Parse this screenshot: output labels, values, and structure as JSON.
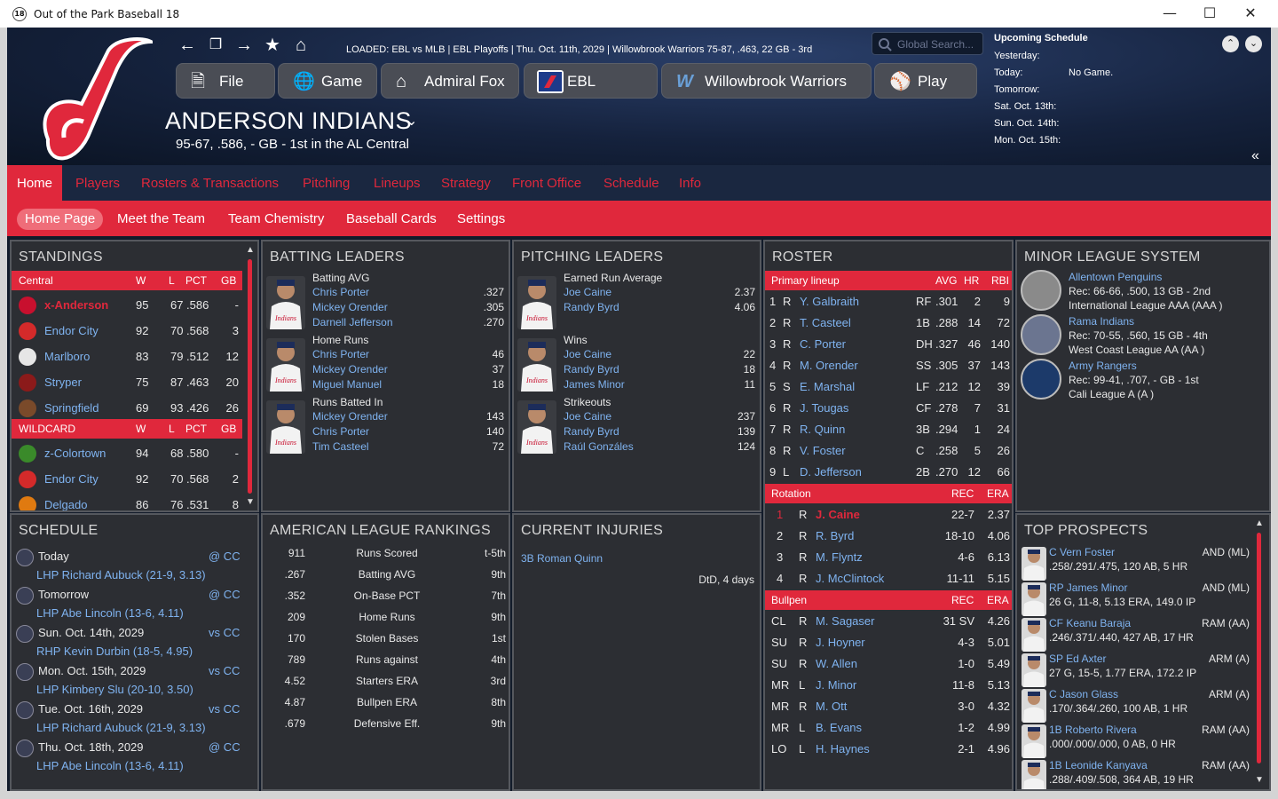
{
  "window": {
    "title": "Out of the Park Baseball 18",
    "app_icon": "18"
  },
  "header": {
    "loaded": "LOADED: EBL vs MLB  |  EBL Playoffs  |  Thu. Oct. 11th, 2029  |  Willowbrook Warriors  75-87, .463, 22 GB - 3rd",
    "search_placeholder": "Global Search...",
    "team_name": "ANDERSON INDIANS",
    "team_record": "95-67, .586, - GB - 1st in the AL Central",
    "menu": [
      "File",
      "Game",
      "Admiral Fox",
      "EBL",
      "Willowbrook Warriors",
      "Play"
    ],
    "logo_color": "#e0283c"
  },
  "upcoming": {
    "title": "Upcoming Schedule",
    "rows": [
      {
        "label": "Yesterday:",
        "value": ""
      },
      {
        "label": "Today:",
        "value": "No Game."
      },
      {
        "label": "Tomorrow:",
        "value": ""
      },
      {
        "label": "Sat. Oct. 13th:",
        "value": ""
      },
      {
        "label": "Sun. Oct. 14th:",
        "value": ""
      },
      {
        "label": "Mon. Oct. 15th:",
        "value": ""
      }
    ]
  },
  "nav": {
    "main": [
      "Home",
      "Players",
      "Rosters & Transactions",
      "Pitching",
      "Lineups",
      "Strategy",
      "Front Office",
      "Schedule",
      "Info"
    ],
    "sub": [
      "Home Page",
      "Meet the Team",
      "Team Chemistry",
      "Baseball Cards",
      "Settings"
    ]
  },
  "standings": {
    "title": "STANDINGS",
    "div_header": [
      "Central",
      "W",
      "L",
      "PCT",
      "GB"
    ],
    "division": [
      {
        "team": "x-Anderson",
        "w": "95",
        "l": "67",
        "pct": ".586",
        "gb": "-",
        "icon": "#c8102e"
      },
      {
        "team": "Endor City",
        "w": "92",
        "l": "70",
        "pct": ".568",
        "gb": "3",
        "icon": "#d42a2a"
      },
      {
        "team": "Marlboro",
        "w": "83",
        "l": "79",
        "pct": ".512",
        "gb": "12",
        "icon": "#e6e6e6"
      },
      {
        "team": "Stryper",
        "w": "75",
        "l": "87",
        "pct": ".463",
        "gb": "20",
        "icon": "#8b1a1a"
      },
      {
        "team": "Springfield",
        "w": "69",
        "l": "93",
        "pct": ".426",
        "gb": "26",
        "icon": "#7a4a2a"
      }
    ],
    "wc_header": [
      "WILDCARD",
      "W",
      "L",
      "PCT",
      "GB"
    ],
    "wildcard": [
      {
        "team": "z-Colortown",
        "w": "94",
        "l": "68",
        "pct": ".580",
        "gb": "-",
        "icon": "#3a8a2a"
      },
      {
        "team": "Endor City",
        "w": "92",
        "l": "70",
        "pct": ".568",
        "gb": "2",
        "icon": "#d42a2a"
      },
      {
        "team": "Delgado",
        "w": "86",
        "l": "76",
        "pct": ".531",
        "gb": "8",
        "icon": "#e07a10"
      }
    ]
  },
  "batting_leaders": {
    "title": "BATTING LEADERS",
    "groups": [
      {
        "stat": "Batting AVG",
        "rows": [
          {
            "name": "Chris Porter",
            "val": ".327"
          },
          {
            "name": "Mickey Orender",
            "val": ".305"
          },
          {
            "name": "Darnell Jefferson",
            "val": ".270"
          }
        ]
      },
      {
        "stat": "Home Runs",
        "rows": [
          {
            "name": "Chris Porter",
            "val": "46"
          },
          {
            "name": "Mickey Orender",
            "val": "37"
          },
          {
            "name": "Miguel Manuel",
            "val": "18"
          }
        ]
      },
      {
        "stat": "Runs Batted In",
        "rows": [
          {
            "name": "Mickey Orender",
            "val": "143"
          },
          {
            "name": "Chris Porter",
            "val": "140"
          },
          {
            "name": "Tim Casteel",
            "val": "72"
          }
        ]
      }
    ]
  },
  "pitching_leaders": {
    "title": "PITCHING LEADERS",
    "groups": [
      {
        "stat": "Earned Run Average",
        "rows": [
          {
            "name": "Joe Caine",
            "val": "2.37"
          },
          {
            "name": "Randy Byrd",
            "val": "4.06"
          }
        ]
      },
      {
        "stat": "Wins",
        "rows": [
          {
            "name": "Joe Caine",
            "val": "22"
          },
          {
            "name": "Randy Byrd",
            "val": "18"
          },
          {
            "name": "James Minor",
            "val": "11"
          }
        ]
      },
      {
        "stat": "Strikeouts",
        "rows": [
          {
            "name": "Joe Caine",
            "val": "237"
          },
          {
            "name": "Randy Byrd",
            "val": "139"
          },
          {
            "name": "Raúl Gonzáles",
            "val": "124"
          }
        ]
      }
    ]
  },
  "roster": {
    "title": "ROSTER",
    "lineup_header": [
      "Primary lineup",
      "AVG",
      "HR",
      "RBI"
    ],
    "lineup": [
      {
        "n": "1",
        "h": "R",
        "name": "Y. Galbraith",
        "pos": "RF",
        "avg": ".301",
        "hr": "2",
        "rbi": "9"
      },
      {
        "n": "2",
        "h": "R",
        "name": "T. Casteel",
        "pos": "1B",
        "avg": ".288",
        "hr": "14",
        "rbi": "72"
      },
      {
        "n": "3",
        "h": "R",
        "name": "C. Porter",
        "pos": "DH",
        "avg": ".327",
        "hr": "46",
        "rbi": "140"
      },
      {
        "n": "4",
        "h": "R",
        "name": "M. Orender",
        "pos": "SS",
        "avg": ".305",
        "hr": "37",
        "rbi": "143"
      },
      {
        "n": "5",
        "h": "S",
        "name": "E. Marshal",
        "pos": "LF",
        "avg": ".212",
        "hr": "12",
        "rbi": "39"
      },
      {
        "n": "6",
        "h": "R",
        "name": "J. Tougas",
        "pos": "CF",
        "avg": ".278",
        "hr": "7",
        "rbi": "31"
      },
      {
        "n": "7",
        "h": "R",
        "name": "R. Quinn",
        "pos": "3B",
        "avg": ".294",
        "hr": "1",
        "rbi": "24"
      },
      {
        "n": "8",
        "h": "R",
        "name": "V. Foster",
        "pos": "C",
        "avg": ".258",
        "hr": "5",
        "rbi": "26"
      },
      {
        "n": "9",
        "h": "L",
        "name": "D. Jefferson",
        "pos": "2B",
        "avg": ".270",
        "hr": "12",
        "rbi": "66"
      }
    ],
    "rotation_header": [
      "Rotation",
      "REC",
      "ERA"
    ],
    "rotation": [
      {
        "n": "1",
        "h": "R",
        "name": "J. Caine",
        "rec": "22-7",
        "era": "2.37"
      },
      {
        "n": "2",
        "h": "R",
        "name": "R. Byrd",
        "rec": "18-10",
        "era": "4.06"
      },
      {
        "n": "3",
        "h": "R",
        "name": "M. Flyntz",
        "rec": "4-6",
        "era": "6.13"
      },
      {
        "n": "4",
        "h": "R",
        "name": "J. McClintock",
        "rec": "11-11",
        "era": "5.15"
      }
    ],
    "bullpen_header": [
      "Bullpen",
      "REC",
      "ERA"
    ],
    "bullpen": [
      {
        "role": "CL",
        "h": "R",
        "name": "M. Sagaser",
        "rec": "31 SV",
        "era": "4.26"
      },
      {
        "role": "SU",
        "h": "R",
        "name": "J. Hoyner",
        "rec": "4-3",
        "era": "5.01"
      },
      {
        "role": "SU",
        "h": "R",
        "name": "W. Allen",
        "rec": "1-0",
        "era": "5.49"
      },
      {
        "role": "MR",
        "h": "L",
        "name": "J. Minor",
        "rec": "11-8",
        "era": "5.13"
      },
      {
        "role": "MR",
        "h": "R",
        "name": "M. Ott",
        "rec": "3-0",
        "era": "4.32"
      },
      {
        "role": "MR",
        "h": "L",
        "name": "B. Evans",
        "rec": "1-2",
        "era": "4.99"
      },
      {
        "role": "LO",
        "h": "L",
        "name": "H. Haynes",
        "rec": "2-1",
        "era": "4.96"
      }
    ]
  },
  "minors": {
    "title": "MINOR LEAGUE SYSTEM",
    "teams": [
      {
        "name": "Allentown Penguins",
        "l1": "Rec: 66-66, .500, 13 GB - 2nd",
        "l2": "International League AAA (AAA )"
      },
      {
        "name": "Rama Indians",
        "l1": "Rec: 70-55, .560, 15 GB - 4th",
        "l2": "West Coast League AA (AA )"
      },
      {
        "name": "Army Rangers",
        "l1": "Rec: 99-41, .707, - GB - 1st",
        "l2": "Cali League A (A )"
      }
    ]
  },
  "schedule": {
    "title": "SCHEDULE",
    "games": [
      {
        "date": "Today",
        "opp": "@ CC",
        "pitcher": "LHP Richard Aubuck (21-9, 3.13)"
      },
      {
        "date": "Tomorrow",
        "opp": "@ CC",
        "pitcher": "LHP Abe Lincoln (13-6, 4.11)"
      },
      {
        "date": "Sun. Oct. 14th, 2029",
        "opp": "vs CC",
        "pitcher": "RHP Kevin Durbin (18-5, 4.95)"
      },
      {
        "date": "Mon. Oct. 15th, 2029",
        "opp": "vs CC",
        "pitcher": "LHP Kimbery Slu (20-10, 3.50)"
      },
      {
        "date": "Tue. Oct. 16th, 2029",
        "opp": "vs CC",
        "pitcher": "LHP Richard Aubuck (21-9, 3.13)"
      },
      {
        "date": "Thu. Oct. 18th, 2029",
        "opp": "@ CC",
        "pitcher": "LHP Abe Lincoln (13-6, 4.11)"
      }
    ]
  },
  "rankings": {
    "title": "AMERICAN LEAGUE RANKINGS",
    "rows": [
      {
        "val": "911",
        "stat": "Runs Scored",
        "rank": "t-5th"
      },
      {
        "val": ".267",
        "stat": "Batting AVG",
        "rank": "9th"
      },
      {
        "val": ".352",
        "stat": "On-Base PCT",
        "rank": "7th"
      },
      {
        "val": "209",
        "stat": "Home Runs",
        "rank": "9th"
      },
      {
        "val": "170",
        "stat": "Stolen Bases",
        "rank": "1st"
      },
      {
        "val": "789",
        "stat": "Runs against",
        "rank": "4th"
      },
      {
        "val": "4.52",
        "stat": "Starters ERA",
        "rank": "3rd"
      },
      {
        "val": "4.87",
        "stat": "Bullpen ERA",
        "rank": "8th"
      },
      {
        "val": ".679",
        "stat": "Defensive Eff.",
        "rank": "9th"
      }
    ]
  },
  "injuries": {
    "title": "CURRENT INJURIES",
    "rows": [
      {
        "player": "3B Roman Quinn",
        "status": "DtD, 4 days"
      }
    ]
  },
  "prospects": {
    "title": "TOP PROSPECTS",
    "rows": [
      {
        "name": "C Vern Foster",
        "team": "AND (ML)",
        "line": ".258/.291/.475, 120 AB, 5 HR"
      },
      {
        "name": "RP James Minor",
        "team": "AND (ML)",
        "line": "26 G, 11-8, 5.13 ERA, 149.0 IP"
      },
      {
        "name": "CF Keanu Baraja",
        "team": "RAM (AA)",
        "line": ".246/.371/.440, 427 AB, 17 HR"
      },
      {
        "name": "SP Ed Axter",
        "team": "ARM (A)",
        "line": "27 G, 15-5, 1.77 ERA, 172.2 IP"
      },
      {
        "name": "C Jason Glass",
        "team": "ARM (A)",
        "line": ".170/.364/.260, 100 AB, 1 HR"
      },
      {
        "name": "1B Roberto Rivera",
        "team": "RAM (AA)",
        "line": ".000/.000/.000, 0 AB, 0 HR"
      },
      {
        "name": "1B Leonide Kanyava",
        "team": "RAM (AA)",
        "line": ".288/.409/.508, 364 AB, 19 HR"
      }
    ]
  }
}
